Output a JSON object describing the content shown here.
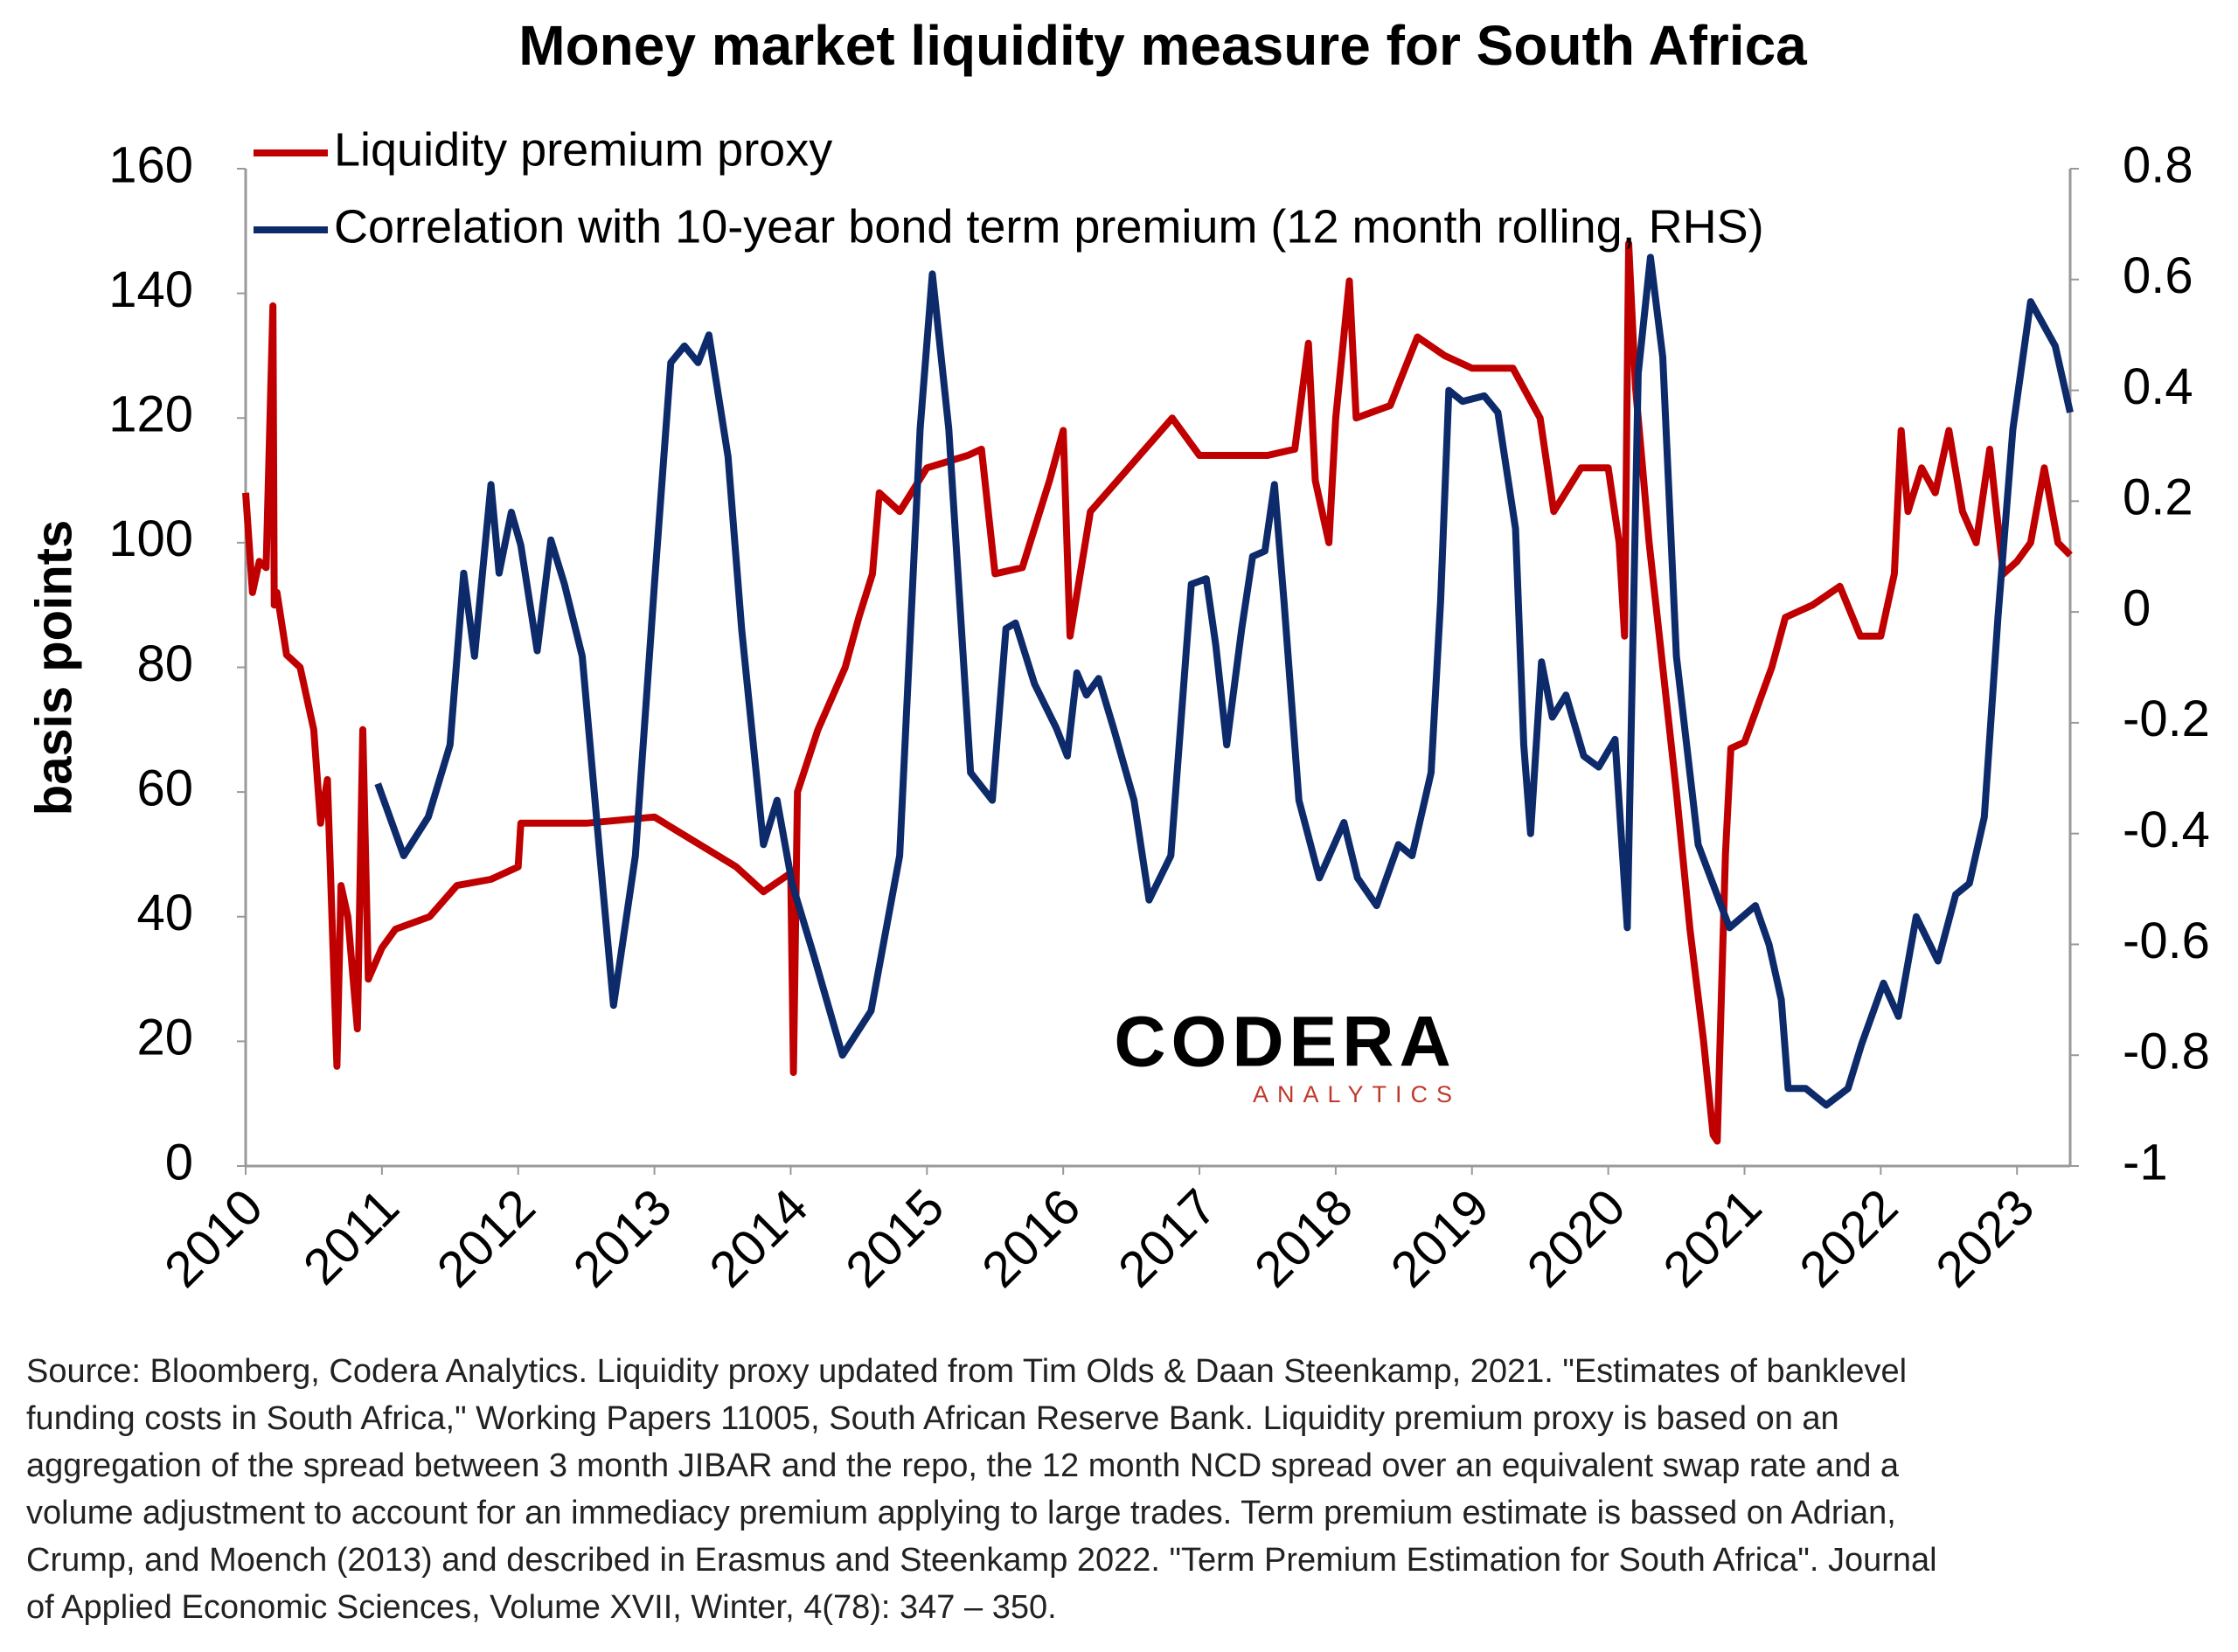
{
  "chart_data": {
    "type": "line",
    "title": "Money market liquidity measure for South Africa",
    "ylabel": "basis points",
    "xlim": [
      2010,
      2023.39
    ],
    "xticks": [
      2010,
      2011,
      2012,
      2013,
      2014,
      2015,
      2016,
      2017,
      2018,
      2019,
      2020,
      2021,
      2022,
      2023
    ],
    "ylim": [
      0,
      160
    ],
    "yticks": [
      0,
      20,
      40,
      60,
      80,
      100,
      120,
      140,
      160
    ],
    "y2lim": [
      -1,
      0.8
    ],
    "y2ticks": [
      -1,
      -0.8,
      -0.6,
      -0.4,
      -0.2,
      0,
      0.2,
      0.4,
      0.6,
      0.8
    ],
    "legend": "top-left",
    "series": [
      {
        "name": "Liquidity premium proxy",
        "color": "#c00000",
        "x": [
          2010.0,
          2010.05,
          2010.1,
          2010.15,
          2010.2,
          2010.21,
          2010.23,
          2010.3,
          2010.4,
          2010.5,
          2010.55,
          2010.6,
          2010.67,
          2010.7,
          2010.75,
          2010.82,
          2010.86,
          2010.9,
          2011.0,
          2011.1,
          2011.35,
          2011.55,
          2011.8,
          2012.0,
          2012.02,
          2012.5,
          2013.0,
          2013.3,
          2013.6,
          2013.8,
          2014.0,
          2014.02,
          2014.05,
          2014.2,
          2014.4,
          2014.5,
          2014.6,
          2014.65,
          2014.8,
          2015.0,
          2015.3,
          2015.4,
          2015.5,
          2015.7,
          2015.9,
          2016.0,
          2016.05,
          2016.2,
          2016.4,
          2016.6,
          2016.8,
          2017.0,
          2017.5,
          2017.7,
          2017.8,
          2017.85,
          2017.95,
          2018.0,
          2018.1,
          2018.15,
          2018.4,
          2018.6,
          2018.8,
          2019.0,
          2019.3,
          2019.5,
          2019.6,
          2019.8,
          2020.0,
          2020.08,
          2020.12,
          2020.15,
          2020.2,
          2020.3,
          2020.4,
          2020.5,
          2020.6,
          2020.7,
          2020.77,
          2020.8,
          2020.86,
          2020.9,
          2021.0,
          2021.2,
          2021.3,
          2021.5,
          2021.7,
          2021.85,
          2022.0,
          2022.1,
          2022.15,
          2022.2,
          2022.3,
          2022.4,
          2022.5,
          2022.6,
          2022.7,
          2022.8,
          2022.9,
          2023.0,
          2023.1,
          2023.2,
          2023.3,
          2023.39
        ],
        "values": [
          108,
          92,
          97,
          96,
          138,
          90,
          92,
          82,
          80,
          70,
          55,
          62,
          16,
          45,
          40,
          22,
          70,
          30,
          35,
          38,
          40,
          45,
          46,
          48,
          55,
          55,
          56,
          52,
          48,
          44,
          47,
          15,
          60,
          70,
          80,
          88,
          95,
          108,
          105,
          112,
          114,
          115,
          95,
          96,
          110,
          118,
          85,
          105,
          110,
          115,
          120,
          114,
          114,
          115,
          132,
          110,
          100,
          120,
          142,
          120,
          122,
          133,
          130,
          128,
          128,
          120,
          105,
          112,
          112,
          100,
          85,
          148,
          125,
          100,
          80,
          60,
          38,
          20,
          5,
          4,
          50,
          67,
          68,
          80,
          88,
          90,
          93,
          85,
          85,
          95,
          118,
          105,
          112,
          108,
          118,
          105,
          100,
          115,
          95,
          97,
          100,
          112,
          100,
          98
        ]
      },
      {
        "name": "Correlation with 10-year bond term premium (12 month rolling, RHS)",
        "color": "#0d2a6b",
        "axis": "y2",
        "x": [
          2010.97,
          2011.16,
          2011.34,
          2011.5,
          2011.6,
          2011.68,
          2011.8,
          2011.86,
          2011.95,
          2012.02,
          2012.14,
          2012.24,
          2012.34,
          2012.47,
          2012.6,
          2012.7,
          2012.86,
          2013.0,
          2013.12,
          2013.22,
          2013.32,
          2013.4,
          2013.54,
          2013.64,
          2013.8,
          2013.9,
          2014.01,
          2014.17,
          2014.38,
          2014.59,
          2014.8,
          2014.95,
          2015.04,
          2015.16,
          2015.32,
          2015.48,
          2015.58,
          2015.65,
          2015.79,
          2015.95,
          2016.03,
          2016.1,
          2016.17,
          2016.26,
          2016.37,
          2016.52,
          2016.63,
          2016.79,
          2016.94,
          2017.05,
          2017.12,
          2017.2,
          2017.31,
          2017.39,
          2017.48,
          2017.55,
          2017.62,
          2017.73,
          2017.88,
          2018.06,
          2018.16,
          2018.3,
          2018.46,
          2018.56,
          2018.7,
          2018.77,
          2018.83,
          2018.93,
          2019.09,
          2019.19,
          2019.32,
          2019.38,
          2019.43,
          2019.51,
          2019.59,
          2019.69,
          2019.82,
          2019.93,
          2020.05,
          2020.14,
          2020.22,
          2020.31,
          2020.4,
          2020.5,
          2020.66,
          2020.89,
          2021.08,
          2021.18,
          2021.27,
          2021.32,
          2021.45,
          2021.6,
          2021.76,
          2021.86,
          2022.02,
          2022.13,
          2022.26,
          2022.42,
          2022.55,
          2022.65,
          2022.76,
          2022.86,
          2022.97,
          2023.1,
          2023.28,
          2023.39
        ],
        "values": [
          -0.31,
          -0.44,
          -0.37,
          -0.24,
          0.07,
          -0.08,
          0.23,
          0.07,
          0.18,
          0.12,
          -0.07,
          0.13,
          0.05,
          -0.08,
          -0.44,
          -0.71,
          -0.44,
          0.05,
          0.45,
          0.48,
          0.45,
          0.5,
          0.28,
          -0.03,
          -0.42,
          -0.34,
          -0.49,
          -0.62,
          -0.8,
          -0.72,
          -0.44,
          0.33,
          0.61,
          0.33,
          -0.29,
          -0.34,
          -0.03,
          -0.02,
          -0.13,
          -0.21,
          -0.26,
          -0.11,
          -0.15,
          -0.12,
          -0.21,
          -0.34,
          -0.52,
          -0.44,
          0.05,
          0.06,
          -0.06,
          -0.24,
          -0.03,
          0.1,
          0.11,
          0.23,
          0.02,
          -0.34,
          -0.48,
          -0.38,
          -0.48,
          -0.53,
          -0.42,
          -0.44,
          -0.29,
          0.02,
          0.4,
          0.38,
          0.39,
          0.36,
          0.15,
          -0.24,
          -0.4,
          -0.09,
          -0.19,
          -0.15,
          -0.26,
          -0.28,
          -0.23,
          -0.57,
          0.43,
          0.64,
          0.46,
          -0.08,
          -0.42,
          -0.57,
          -0.53,
          -0.6,
          -0.7,
          -0.86,
          -0.86,
          -0.89,
          -0.86,
          -0.78,
          -0.67,
          -0.73,
          -0.55,
          -0.63,
          -0.51,
          -0.49,
          -0.37,
          -0.01,
          0.33,
          0.56,
          0.48,
          0.36
        ]
      }
    ],
    "logo": {
      "name": "CODERA",
      "subtitle": "ANALYTICS"
    },
    "source": [
      "Source: Bloomberg, Codera Analytics. Liquidity proxy updated from Tim Olds & Daan Steenkamp, 2021. \"Estimates of banklevel",
      "funding costs in South Africa,\" Working Papers 11005, South African Reserve Bank. Liquidity premium proxy is based on an",
      "aggregation of the spread between 3 month JIBAR and the repo, the 12 month NCD spread over an equivalent swap rate and a",
      "volume adjustment to account for an immediacy premium applying to large trades. Term premium estimate is bassed on Adrian,",
      "Crump, and Moench (2013) and described in Erasmus and Steenkamp 2022. \"Term Premium Estimation for South Africa\". Journal",
      "of Applied Economic Sciences, Volume XVII, Winter, 4(78): 347 – 350."
    ]
  }
}
